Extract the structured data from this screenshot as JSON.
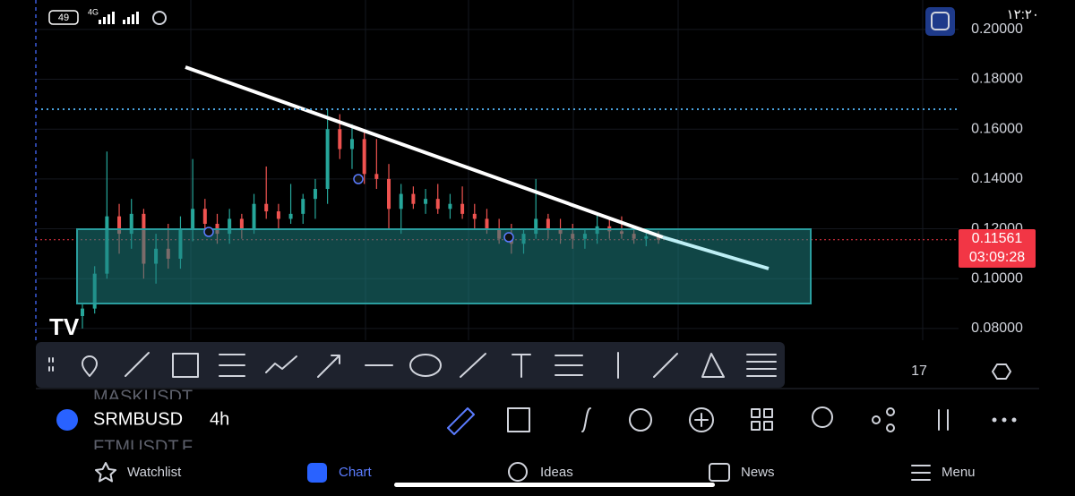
{
  "status_bar": {
    "battery": "49",
    "network": "4G",
    "time": "۱۲:۲۰"
  },
  "chart": {
    "type": "candlestick",
    "ylim": [
      0.0753,
      0.2118
    ],
    "yticks": [
      {
        "value": 0.08,
        "label": "0.08000"
      },
      {
        "value": 0.1,
        "label": "0.10000"
      },
      {
        "value": 0.12,
        "label": "0.12000"
      },
      {
        "value": 0.14,
        "label": "0.14000"
      },
      {
        "value": 0.16,
        "label": "0.16000"
      },
      {
        "value": 0.18,
        "label": "0.18000"
      },
      {
        "value": 0.2,
        "label": "0.20000"
      }
    ],
    "grid": true,
    "up_color": "#26a69a",
    "down_color": "#ef5350",
    "candles": [
      [
        0.085,
        0.09,
        0.08,
        0.088
      ],
      [
        0.088,
        0.105,
        0.086,
        0.102
      ],
      [
        0.102,
        0.151,
        0.1,
        0.125
      ],
      [
        0.125,
        0.13,
        0.11,
        0.118
      ],
      [
        0.118,
        0.132,
        0.112,
        0.126
      ],
      [
        0.126,
        0.128,
        0.1,
        0.106
      ],
      [
        0.106,
        0.118,
        0.098,
        0.112
      ],
      [
        0.112,
        0.122,
        0.104,
        0.108
      ],
      [
        0.108,
        0.125,
        0.104,
        0.12
      ],
      [
        0.12,
        0.148,
        0.115,
        0.128
      ],
      [
        0.128,
        0.132,
        0.118,
        0.122
      ],
      [
        0.122,
        0.126,
        0.114,
        0.118
      ],
      [
        0.118,
        0.128,
        0.114,
        0.124
      ],
      [
        0.124,
        0.126,
        0.116,
        0.12
      ],
      [
        0.12,
        0.134,
        0.118,
        0.13
      ],
      [
        0.13,
        0.145,
        0.124,
        0.127
      ],
      [
        0.127,
        0.13,
        0.12,
        0.124
      ],
      [
        0.124,
        0.138,
        0.122,
        0.126
      ],
      [
        0.126,
        0.134,
        0.122,
        0.132
      ],
      [
        0.132,
        0.14,
        0.124,
        0.136
      ],
      [
        0.136,
        0.168,
        0.13,
        0.16
      ],
      [
        0.16,
        0.166,
        0.148,
        0.152
      ],
      [
        0.152,
        0.162,
        0.144,
        0.156
      ],
      [
        0.156,
        0.159,
        0.138,
        0.142
      ],
      [
        0.142,
        0.156,
        0.136,
        0.14
      ],
      [
        0.14,
        0.146,
        0.12,
        0.128
      ],
      [
        0.128,
        0.138,
        0.118,
        0.134
      ],
      [
        0.134,
        0.137,
        0.128,
        0.13
      ],
      [
        0.13,
        0.136,
        0.126,
        0.132
      ],
      [
        0.132,
        0.138,
        0.126,
        0.128
      ],
      [
        0.128,
        0.134,
        0.124,
        0.13
      ],
      [
        0.13,
        0.137,
        0.124,
        0.126
      ],
      [
        0.126,
        0.13,
        0.12,
        0.124
      ],
      [
        0.124,
        0.128,
        0.118,
        0.12
      ],
      [
        0.12,
        0.124,
        0.114,
        0.116
      ],
      [
        0.116,
        0.122,
        0.11,
        0.114
      ],
      [
        0.114,
        0.12,
        0.11,
        0.118
      ],
      [
        0.118,
        0.14,
        0.116,
        0.124
      ],
      [
        0.124,
        0.126,
        0.116,
        0.12
      ],
      [
        0.12,
        0.124,
        0.114,
        0.118
      ],
      [
        0.118,
        0.122,
        0.112,
        0.116
      ],
      [
        0.116,
        0.12,
        0.112,
        0.118
      ],
      [
        0.118,
        0.126,
        0.114,
        0.121
      ],
      [
        0.121,
        0.124,
        0.116,
        0.119
      ],
      [
        0.119,
        0.125,
        0.116,
        0.118
      ],
      [
        0.118,
        0.121,
        0.114,
        0.116
      ],
      [
        0.116,
        0.119,
        0.113,
        0.117
      ],
      [
        0.117,
        0.119,
        0.114,
        0.11561
      ]
    ],
    "last_price": 0.11561,
    "countdown": "03:09:28",
    "xtick_labels": [
      "17"
    ]
  },
  "symbol_bar": {
    "above": "MASKUSDT",
    "symbol": "SRMBUSD",
    "interval": "4h",
    "below": "FTMUSDT.F"
  },
  "nav": [
    "Watchlist",
    "Chart",
    "Ideas",
    "News",
    "Menu"
  ]
}
